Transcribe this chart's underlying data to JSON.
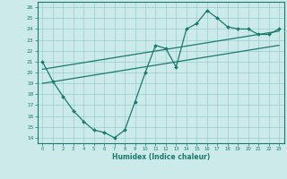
{
  "xlabel": "Humidex (Indice chaleur)",
  "bg_color": "#cceaea",
  "line_color": "#1a7a6e",
  "grid_color": "#99cccc",
  "xlim": [
    -0.5,
    23.5
  ],
  "ylim": [
    13.5,
    26.5
  ],
  "yticks": [
    14,
    15,
    16,
    17,
    18,
    19,
    20,
    21,
    22,
    23,
    24,
    25,
    26
  ],
  "xticks": [
    0,
    1,
    2,
    3,
    4,
    5,
    6,
    7,
    8,
    9,
    10,
    11,
    12,
    13,
    14,
    15,
    16,
    17,
    18,
    19,
    20,
    21,
    22,
    23
  ],
  "line1_x": [
    0,
    1,
    2,
    3,
    4,
    5,
    6,
    7,
    8,
    9,
    10,
    11,
    12,
    13,
    14,
    15,
    16,
    17,
    18,
    19,
    20,
    21,
    22,
    23
  ],
  "line1_y": [
    21.0,
    19.2,
    17.8,
    16.5,
    15.5,
    14.7,
    14.5,
    14.0,
    14.7,
    17.3,
    20.0,
    22.5,
    22.2,
    20.5,
    24.0,
    24.5,
    25.7,
    25.0,
    24.2,
    24.0,
    24.0,
    23.5,
    23.5,
    24.0
  ],
  "line2_x": [
    0,
    23
  ],
  "line2_y": [
    20.3,
    23.8
  ],
  "line3_x": [
    0,
    23
  ],
  "line3_y": [
    19.0,
    22.5
  ]
}
